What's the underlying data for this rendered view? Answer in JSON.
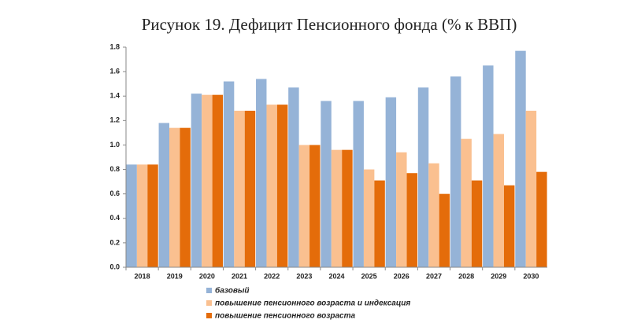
{
  "chart_data": {
    "type": "bar",
    "title": "Рисунок 19. Дефицит Пенсионного фонда (% к ВВП)",
    "categories": [
      "2018",
      "2019",
      "2020",
      "2021",
      "2022",
      "2023",
      "2024",
      "2025",
      "2026",
      "2027",
      "2028",
      "2029",
      "2030"
    ],
    "series": [
      {
        "name": "базовый",
        "color": "#95b3d7",
        "values": [
          0.84,
          1.18,
          1.42,
          1.52,
          1.54,
          1.47,
          1.36,
          1.36,
          1.39,
          1.47,
          1.56,
          1.65,
          1.77
        ]
      },
      {
        "name": "повышение пенсионного возраста и индексация",
        "color": "#fac090",
        "values": [
          0.84,
          1.14,
          1.41,
          1.28,
          1.33,
          1.0,
          0.96,
          0.8,
          0.94,
          0.85,
          1.05,
          1.09,
          1.28
        ]
      },
      {
        "name": "повышение пенсионного возраста",
        "color": "#e46c0a",
        "values": [
          0.84,
          1.14,
          1.41,
          1.28,
          1.33,
          1.0,
          0.96,
          0.71,
          0.77,
          0.6,
          0.71,
          0.67,
          0.78
        ]
      }
    ],
    "ylim": [
      0,
      1.8
    ],
    "yticks": [
      {
        "value": 0,
        "label": "0.0"
      },
      0.2,
      0.4,
      0.6,
      0.8,
      {
        "value": 1,
        "label": "1.0"
      },
      1.2,
      1.4,
      1.6,
      1.8
    ],
    "grid": false
  }
}
